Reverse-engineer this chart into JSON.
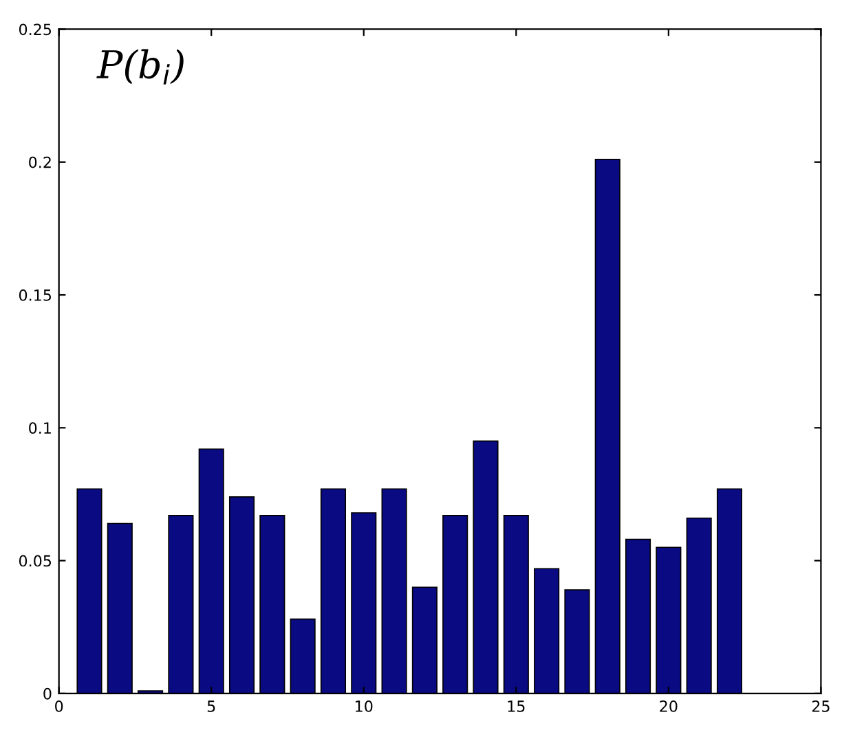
{
  "chart_data": {
    "type": "bar",
    "annotations": [
      "P(b$_{i}$)"
    ],
    "x": [
      1,
      2,
      3,
      4,
      5,
      6,
      7,
      8,
      9,
      10,
      11,
      12,
      13,
      14,
      15,
      16,
      17,
      18,
      19,
      20,
      21,
      22
    ],
    "values": [
      0.077,
      0.064,
      0.001,
      0.067,
      0.092,
      0.074,
      0.067,
      0.028,
      0.077,
      0.068,
      0.077,
      0.04,
      0.067,
      0.095,
      0.067,
      0.047,
      0.039,
      0.201,
      0.058,
      0.055,
      0.066,
      0.077
    ],
    "color": "#0a0a82",
    "xlim": [
      0,
      25
    ],
    "xticks": [
      0,
      5,
      10,
      15,
      20,
      25
    ],
    "ylim": [
      0,
      0.25
    ],
    "yticks": [
      0,
      0.05,
      0.1,
      0.15,
      0.2,
      0.25
    ],
    "grid": false,
    "legend": false
  }
}
